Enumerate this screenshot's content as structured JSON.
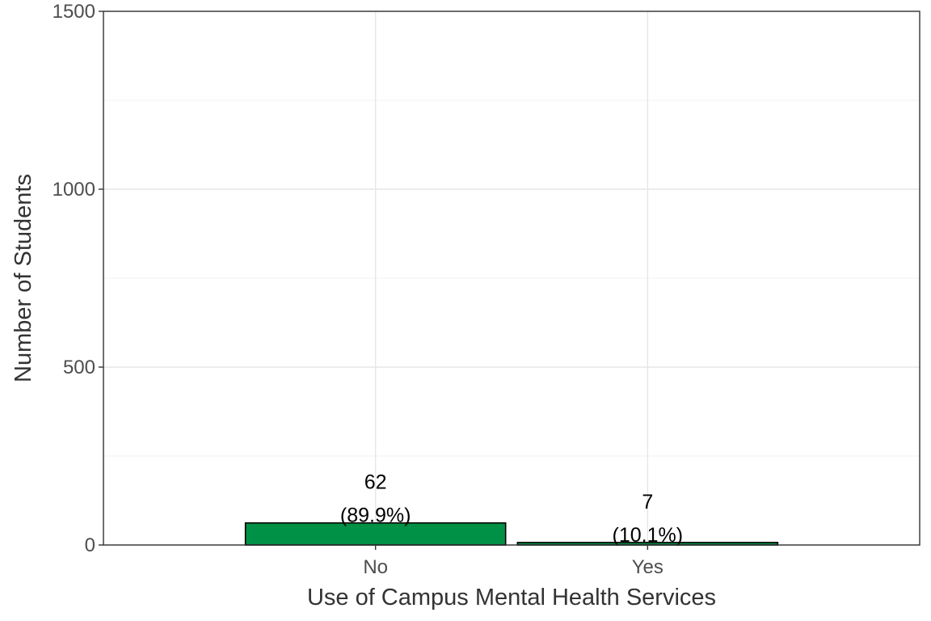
{
  "chart_data": {
    "type": "bar",
    "categories": [
      "No",
      "Yes"
    ],
    "values": [
      62,
      7
    ],
    "data_labels": [
      {
        "count": "62",
        "percent": "(89.9%)"
      },
      {
        "count": "7",
        "percent": "(10.1%)"
      }
    ],
    "xlabel": "Use of Campus Mental Health Services",
    "ylabel": "Number of Students",
    "ylim": [
      0,
      1500
    ],
    "yticks": [
      "0",
      "500",
      "1000",
      "1500"
    ],
    "grid": true,
    "bar_color": "#009147",
    "bar_outline": "#000000"
  }
}
